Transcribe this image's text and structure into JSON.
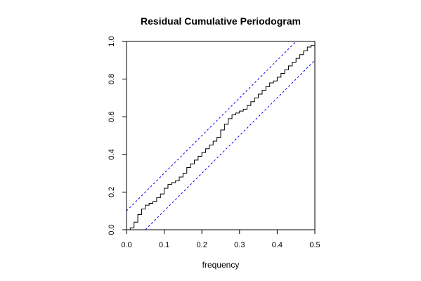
{
  "chart_data": {
    "type": "line",
    "title": "Residual Cumulative Periodogram",
    "xlabel": "frequency",
    "ylabel": "",
    "xlim": [
      0,
      0.5
    ],
    "ylim": [
      0,
      1
    ],
    "xticks": [
      "0.0",
      "0.1",
      "0.2",
      "0.3",
      "0.4",
      "0.5"
    ],
    "yticks": [
      "0.0",
      "0.2",
      "0.4",
      "0.6",
      "0.8",
      "1.0"
    ],
    "grid": false,
    "legend": "none",
    "colors": {
      "series": "#000000",
      "bounds": "#0000ff",
      "frame": "#000000"
    },
    "series": [
      {
        "values": [
          [
            0.0,
            0.0
          ],
          [
            0.01,
            0.01
          ],
          [
            0.02,
            0.04
          ],
          [
            0.03,
            0.08
          ],
          [
            0.04,
            0.11
          ],
          [
            0.05,
            0.13
          ],
          [
            0.06,
            0.14
          ],
          [
            0.07,
            0.15
          ],
          [
            0.08,
            0.17
          ],
          [
            0.09,
            0.19
          ],
          [
            0.1,
            0.22
          ],
          [
            0.11,
            0.24
          ],
          [
            0.12,
            0.25
          ],
          [
            0.13,
            0.26
          ],
          [
            0.14,
            0.28
          ],
          [
            0.15,
            0.3
          ],
          [
            0.16,
            0.33
          ],
          [
            0.17,
            0.35
          ],
          [
            0.18,
            0.37
          ],
          [
            0.19,
            0.39
          ],
          [
            0.2,
            0.41
          ],
          [
            0.21,
            0.43
          ],
          [
            0.22,
            0.45
          ],
          [
            0.23,
            0.47
          ],
          [
            0.24,
            0.49
          ],
          [
            0.25,
            0.53
          ],
          [
            0.26,
            0.56
          ],
          [
            0.27,
            0.59
          ],
          [
            0.28,
            0.61
          ],
          [
            0.29,
            0.62
          ],
          [
            0.3,
            0.63
          ],
          [
            0.31,
            0.64
          ],
          [
            0.32,
            0.66
          ],
          [
            0.33,
            0.68
          ],
          [
            0.34,
            0.7
          ],
          [
            0.35,
            0.72
          ],
          [
            0.36,
            0.74
          ],
          [
            0.37,
            0.76
          ],
          [
            0.38,
            0.78
          ],
          [
            0.39,
            0.79
          ],
          [
            0.4,
            0.81
          ],
          [
            0.41,
            0.83
          ],
          [
            0.42,
            0.85
          ],
          [
            0.43,
            0.87
          ],
          [
            0.44,
            0.89
          ],
          [
            0.45,
            0.91
          ],
          [
            0.46,
            0.93
          ],
          [
            0.47,
            0.95
          ],
          [
            0.48,
            0.97
          ],
          [
            0.49,
            0.98
          ],
          [
            0.5,
            1.0
          ]
        ]
      }
    ],
    "bounds": [
      {
        "style": "dashed",
        "x": [
          0.0,
          0.45
        ],
        "y": [
          0.1,
          1.0
        ]
      },
      {
        "style": "dashed",
        "x": [
          0.05,
          0.5
        ],
        "y": [
          0.0,
          0.9
        ]
      }
    ]
  }
}
